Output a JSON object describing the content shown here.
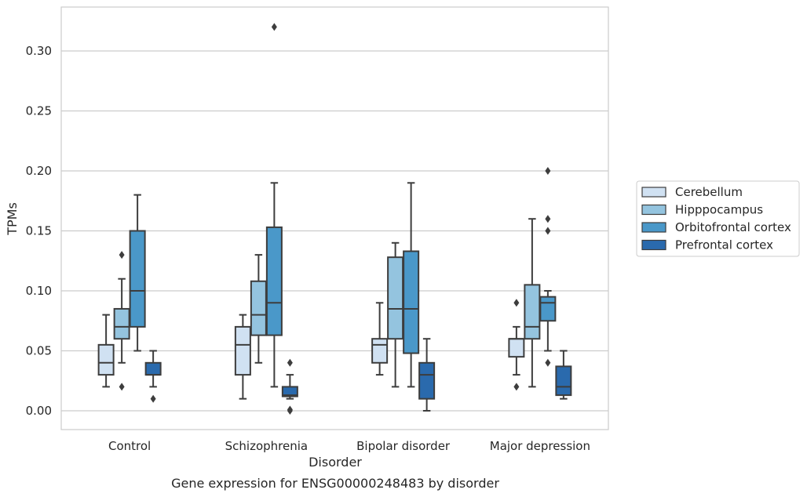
{
  "chart_data": {
    "type": "box",
    "title": "",
    "caption": "Gene expression for ENSG00000248483 by disorder",
    "xlabel": "Disorder",
    "ylabel": "TPMs",
    "ylim": [
      -0.015,
      0.335
    ],
    "yticks": [
      0.0,
      0.05,
      0.1,
      0.15,
      0.2,
      0.25,
      0.3
    ],
    "ytick_labels": [
      "0.00",
      "0.05",
      "0.10",
      "0.15",
      "0.20",
      "0.25",
      "0.30"
    ],
    "grid": "horizontal",
    "legend_position": "right",
    "categories": [
      "Control",
      "Schizophrenia",
      "Bipolar disorder",
      "Major depression"
    ],
    "series": [
      {
        "name": "Cerebellum",
        "color": "#d0e1f2",
        "boxes": [
          {
            "whisker_low": 0.02,
            "q1": 0.03,
            "median": 0.04,
            "q3": 0.055,
            "whisker_high": 0.08,
            "outliers": []
          },
          {
            "whisker_low": 0.01,
            "q1": 0.03,
            "median": 0.055,
            "q3": 0.07,
            "whisker_high": 0.08,
            "outliers": []
          },
          {
            "whisker_low": 0.03,
            "q1": 0.04,
            "median": 0.055,
            "q3": 0.06,
            "whisker_high": 0.09,
            "outliers": []
          },
          {
            "whisker_low": 0.03,
            "q1": 0.045,
            "median": 0.06,
            "q3": 0.06,
            "whisker_high": 0.07,
            "outliers": [
              0.09,
              0.02
            ]
          }
        ]
      },
      {
        "name": "Hipppocampus",
        "color": "#94c4df",
        "boxes": [
          {
            "whisker_low": 0.04,
            "q1": 0.06,
            "median": 0.07,
            "q3": 0.085,
            "whisker_high": 0.11,
            "outliers": [
              0.13,
              0.02
            ]
          },
          {
            "whisker_low": 0.04,
            "q1": 0.063,
            "median": 0.08,
            "q3": 0.108,
            "whisker_high": 0.13,
            "outliers": []
          },
          {
            "whisker_low": 0.02,
            "q1": 0.06,
            "median": 0.085,
            "q3": 0.128,
            "whisker_high": 0.14,
            "outliers": []
          },
          {
            "whisker_low": 0.02,
            "q1": 0.06,
            "median": 0.07,
            "q3": 0.105,
            "whisker_high": 0.16,
            "outliers": []
          }
        ]
      },
      {
        "name": "Orbitofrontal cortex",
        "color": "#4a98c9",
        "boxes": [
          {
            "whisker_low": 0.05,
            "q1": 0.07,
            "median": 0.1,
            "q3": 0.15,
            "whisker_high": 0.18,
            "outliers": []
          },
          {
            "whisker_low": 0.02,
            "q1": 0.063,
            "median": 0.09,
            "q3": 0.153,
            "whisker_high": 0.19,
            "outliers": [
              0.32
            ]
          },
          {
            "whisker_low": 0.02,
            "q1": 0.048,
            "median": 0.085,
            "q3": 0.133,
            "whisker_high": 0.19,
            "outliers": []
          },
          {
            "whisker_low": 0.05,
            "q1": 0.075,
            "median": 0.09,
            "q3": 0.095,
            "whisker_high": 0.1,
            "outliers": [
              0.2,
              0.16,
              0.15,
              0.04
            ]
          }
        ]
      },
      {
        "name": "Prefrontal cortex",
        "color": "#2a6aad",
        "boxes": [
          {
            "whisker_low": 0.02,
            "q1": 0.03,
            "median": 0.03,
            "q3": 0.04,
            "whisker_high": 0.05,
            "outliers": [
              0.01
            ]
          },
          {
            "whisker_low": 0.01,
            "q1": 0.012,
            "median": 0.013,
            "q3": 0.02,
            "whisker_high": 0.03,
            "outliers": [
              0.04,
              0.0,
              0.001
            ]
          },
          {
            "whisker_low": 0.0,
            "q1": 0.01,
            "median": 0.03,
            "q3": 0.04,
            "whisker_high": 0.06,
            "outliers": []
          },
          {
            "whisker_low": 0.01,
            "q1": 0.013,
            "median": 0.02,
            "q3": 0.037,
            "whisker_high": 0.05,
            "outliers": []
          }
        ]
      }
    ]
  }
}
